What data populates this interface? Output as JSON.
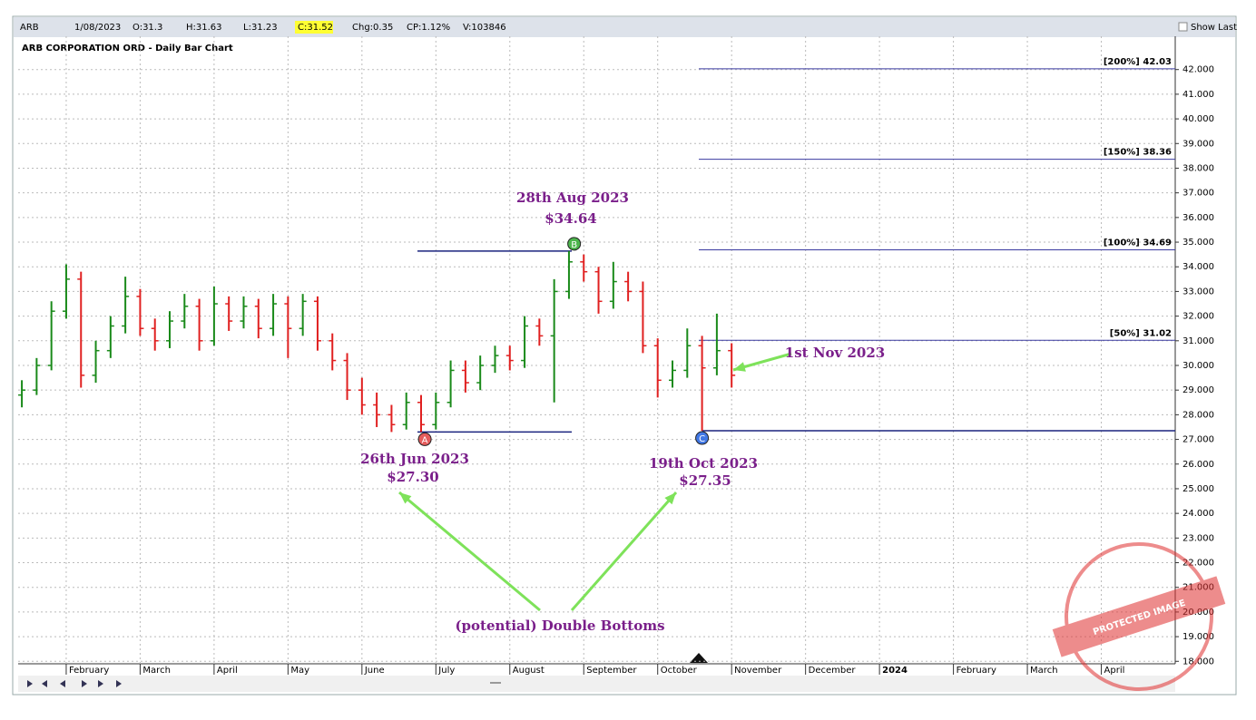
{
  "toolbar": {
    "symbol": "ARB",
    "date": "1/08/2023",
    "open": "O:31.3",
    "high": "H:31.63",
    "low": "L:31.23",
    "close": "C:31.52",
    "change": "Chg:0.35",
    "change_pct": "CP:1.12%",
    "volume": "V:103846",
    "show_last": "Show Last"
  },
  "chart_data": {
    "type": "ohlc",
    "title": "ARB CORPORATION ORD - Daily Bar Chart",
    "x": [
      1.4,
      1.6,
      1.8,
      2.0,
      2.2,
      2.4,
      2.6,
      2.8,
      3.0,
      3.2,
      3.4,
      3.6,
      3.8,
      4.0,
      4.2,
      4.4,
      4.6,
      4.8,
      5.0,
      5.2,
      5.4,
      5.6,
      5.8,
      6.0,
      6.2,
      6.4,
      6.6,
      6.8,
      7.0,
      7.2,
      7.4,
      7.6,
      7.8,
      8.0,
      8.2,
      8.4,
      8.6,
      8.8,
      9.0,
      9.2,
      9.4,
      9.6,
      9.8,
      10.0,
      10.2,
      10.4,
      10.6,
      10.8,
      11.0
    ],
    "ohlc": [
      [
        28.8,
        29.4,
        28.3,
        29.0
      ],
      [
        29.0,
        30.3,
        28.8,
        30.0
      ],
      [
        30.0,
        32.6,
        29.8,
        32.2
      ],
      [
        32.2,
        34.1,
        31.9,
        33.5
      ],
      [
        33.5,
        33.8,
        29.1,
        29.6
      ],
      [
        29.6,
        31.0,
        29.3,
        30.6
      ],
      [
        30.6,
        32.0,
        30.3,
        31.6
      ],
      [
        31.6,
        33.6,
        31.3,
        32.8
      ],
      [
        32.8,
        33.1,
        31.2,
        31.5
      ],
      [
        31.5,
        31.9,
        30.6,
        31.0
      ],
      [
        31.0,
        32.2,
        30.7,
        31.8
      ],
      [
        31.8,
        32.9,
        31.5,
        32.4
      ],
      [
        32.4,
        32.7,
        30.6,
        31.0
      ],
      [
        31.0,
        33.2,
        30.8,
        32.5
      ],
      [
        32.5,
        32.8,
        31.4,
        31.8
      ],
      [
        31.8,
        32.8,
        31.5,
        32.4
      ],
      [
        32.4,
        32.7,
        31.1,
        31.5
      ],
      [
        31.5,
        32.9,
        31.2,
        32.5
      ],
      [
        32.5,
        32.8,
        30.3,
        31.5
      ],
      [
        31.5,
        32.9,
        31.2,
        32.6
      ],
      [
        32.6,
        32.8,
        30.6,
        31.0
      ],
      [
        31.0,
        31.3,
        29.8,
        30.2
      ],
      [
        30.2,
        30.5,
        28.6,
        29.0
      ],
      [
        29.0,
        29.5,
        28.0,
        28.4
      ],
      [
        28.4,
        28.9,
        27.5,
        28.0
      ],
      [
        28.0,
        28.4,
        27.3,
        27.6
      ],
      [
        27.6,
        28.9,
        27.4,
        28.5
      ],
      [
        28.5,
        28.8,
        27.3,
        27.6
      ],
      [
        27.6,
        28.9,
        27.4,
        28.5
      ],
      [
        28.5,
        30.2,
        28.3,
        29.8
      ],
      [
        29.8,
        30.2,
        28.9,
        29.3
      ],
      [
        29.3,
        30.4,
        29.0,
        30.0
      ],
      [
        30.0,
        30.8,
        29.7,
        30.4
      ],
      [
        30.4,
        30.8,
        29.8,
        30.2
      ],
      [
        30.2,
        32.0,
        29.9,
        31.6
      ],
      [
        31.6,
        31.9,
        30.8,
        31.2
      ],
      [
        31.2,
        33.5,
        28.5,
        33.0
      ],
      [
        33.0,
        34.64,
        32.7,
        34.2
      ],
      [
        34.2,
        34.5,
        33.4,
        33.8
      ],
      [
        33.8,
        34.0,
        32.1,
        32.6
      ],
      [
        32.6,
        34.2,
        32.3,
        33.4
      ],
      [
        33.4,
        33.8,
        32.6,
        33.0
      ],
      [
        33.0,
        33.4,
        30.5,
        30.8
      ],
      [
        30.8,
        31.1,
        28.7,
        29.4
      ],
      [
        29.4,
        30.2,
        29.1,
        29.8
      ],
      [
        29.8,
        31.5,
        29.5,
        30.8
      ],
      [
        30.8,
        31.2,
        27.35,
        29.9
      ],
      [
        29.9,
        32.1,
        29.6,
        30.6
      ],
      [
        30.6,
        30.9,
        29.1,
        29.6
      ]
    ],
    "up_color": "#1a8a1a",
    "down_color": "#e02020",
    "xlim": [
      1.35,
      17.0
    ],
    "xticks": [
      {
        "value": 2,
        "label": "February"
      },
      {
        "value": 3,
        "label": "March"
      },
      {
        "value": 4,
        "label": "April"
      },
      {
        "value": 5,
        "label": "May"
      },
      {
        "value": 6,
        "label": "June"
      },
      {
        "value": 7,
        "label": "July"
      },
      {
        "value": 8,
        "label": "August"
      },
      {
        "value": 9,
        "label": "September"
      },
      {
        "value": 10,
        "label": "October"
      },
      {
        "value": 11,
        "label": "November"
      },
      {
        "value": 12,
        "label": "December"
      },
      {
        "value": 13,
        "label": "2024"
      },
      {
        "value": 14,
        "label": "February"
      },
      {
        "value": 15,
        "label": "March"
      },
      {
        "value": 16,
        "label": "April"
      }
    ],
    "ylim": [
      17.9,
      43.35
    ],
    "yticks": [
      {
        "value": 18,
        "label": "18.000"
      },
      {
        "value": 19,
        "label": "19.000"
      },
      {
        "value": 20,
        "label": "20.000"
      },
      {
        "value": 21,
        "label": "21.000"
      },
      {
        "value": 22,
        "label": "22.000"
      },
      {
        "value": 23,
        "label": "23.000"
      },
      {
        "value": 24,
        "label": "24.000"
      },
      {
        "value": 25,
        "label": "25.000"
      },
      {
        "value": 26,
        "label": "26.000"
      },
      {
        "value": 27,
        "label": "27.000"
      },
      {
        "value": 28,
        "label": "28.000"
      },
      {
        "value": 29,
        "label": "29.000"
      },
      {
        "value": 30,
        "label": "30.000"
      },
      {
        "value": 31,
        "label": "31.000"
      },
      {
        "value": 32,
        "label": "32.000"
      },
      {
        "value": 33,
        "label": "33.000"
      },
      {
        "value": 34,
        "label": "34.000"
      },
      {
        "value": 35,
        "label": "35.000"
      },
      {
        "value": 36,
        "label": "36.000"
      },
      {
        "value": 37,
        "label": "37.000"
      },
      {
        "value": 38,
        "label": "38.000"
      },
      {
        "value": 39,
        "label": "39.000"
      },
      {
        "value": 40,
        "label": "40.000"
      },
      {
        "value": 41,
        "label": "41.000"
      },
      {
        "value": 42,
        "label": "42.000"
      }
    ],
    "grid": true,
    "levels": [
      {
        "label": "[200%] 42.03",
        "value": 42.03
      },
      {
        "label": "[150%] 38.36",
        "value": 38.36
      },
      {
        "label": "[100%] 34.69",
        "value": 34.69
      },
      {
        "label": "[50%] 31.02",
        "value": 31.02
      }
    ],
    "points": [
      {
        "label": "A",
        "x": 6.85,
        "value": 27.3,
        "color": "#e04040"
      },
      {
        "label": "B",
        "x": 8.87,
        "value": 34.64,
        "color": "#2ea82e"
      },
      {
        "label": "C",
        "x": 10.6,
        "value": 27.35,
        "color": "#2060e0"
      }
    ],
    "annotations": [
      "28th Aug 2023",
      "$34.64",
      "26th Jun 2023",
      "$27.30",
      "19th Oct 2023",
      "$27.35",
      "1st Nov 2023",
      "(potential) Double Bottoms"
    ],
    "stamp": "PROTECTED IMAGE"
  }
}
